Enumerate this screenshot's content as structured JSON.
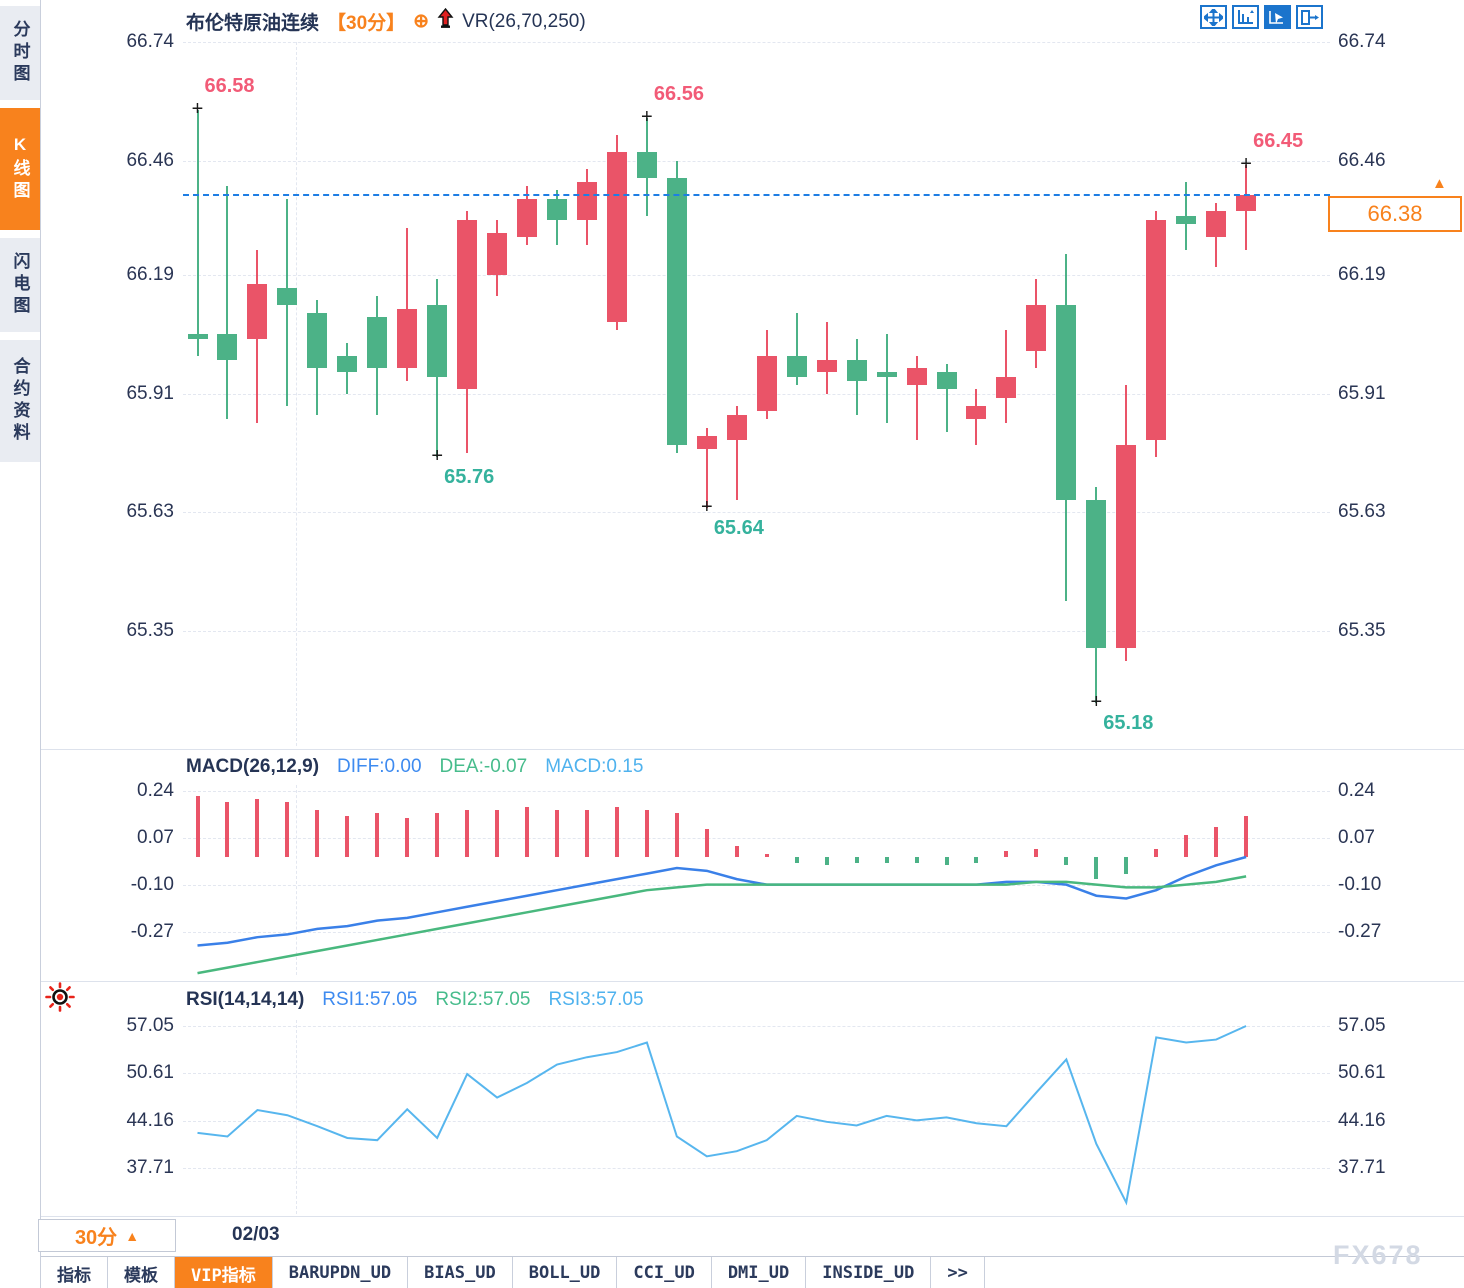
{
  "window": {
    "watermark": "FX678"
  },
  "sidebar": {
    "items": [
      {
        "label": "分时图",
        "active": false
      },
      {
        "label": "K线图",
        "active": true
      },
      {
        "label": "闪电图",
        "active": false
      },
      {
        "label": "合约资料",
        "active": false
      }
    ]
  },
  "header": {
    "symbol": "布伦特原油连续",
    "period": "【30分】",
    "plus_icon": "⊕",
    "indicator": "VR(26,70,250)",
    "toolbar_icons": [
      "pan-icon",
      "axis-scale-icon",
      "pointer-icon",
      "collapse-right-icon"
    ]
  },
  "price_tag": {
    "value": "66.38",
    "arrow": "▲"
  },
  "footer": {
    "period_button": "30分",
    "period_arrow": "▲",
    "date_label": "02/03",
    "tabs": [
      {
        "label": "指标",
        "active": false
      },
      {
        "label": "模板",
        "active": false
      },
      {
        "label": "VIP指标",
        "active": true
      },
      {
        "label": "BARUPDN_UD",
        "active": false
      },
      {
        "label": "BIAS_UD",
        "active": false
      },
      {
        "label": "BOLL_UD",
        "active": false
      },
      {
        "label": "CCI_UD",
        "active": false
      },
      {
        "label": "DMI_UD",
        "active": false
      },
      {
        "label": "INSIDE_UD",
        "active": false
      },
      {
        "label": ">>",
        "active": false
      }
    ]
  },
  "chart_data": {
    "type": "candlestick",
    "symbol": "布伦特原油连续",
    "interval": "30分",
    "current_price": 66.38,
    "main": {
      "axis": [
        "66.74",
        "66.46",
        "66.19",
        "65.91",
        "65.63",
        "65.35"
      ],
      "candles": [
        [
          66.05,
          66.58,
          66.0,
          66.04
        ],
        [
          66.05,
          66.4,
          65.85,
          65.99
        ],
        [
          66.04,
          66.25,
          65.84,
          66.17
        ],
        [
          66.16,
          66.37,
          65.88,
          66.12
        ],
        [
          66.1,
          66.13,
          65.86,
          65.97
        ],
        [
          66.0,
          66.03,
          65.91,
          65.96
        ],
        [
          66.09,
          66.14,
          65.86,
          65.97
        ],
        [
          65.97,
          66.3,
          65.94,
          66.11
        ],
        [
          66.12,
          66.18,
          65.76,
          65.95
        ],
        [
          65.92,
          66.34,
          65.77,
          66.32
        ],
        [
          66.19,
          66.32,
          66.14,
          66.29
        ],
        [
          66.28,
          66.4,
          66.26,
          66.37
        ],
        [
          66.37,
          66.39,
          66.26,
          66.32
        ],
        [
          66.32,
          66.44,
          66.26,
          66.41
        ],
        [
          66.08,
          66.52,
          66.06,
          66.48
        ],
        [
          66.48,
          66.56,
          66.33,
          66.42
        ],
        [
          66.42,
          66.46,
          65.77,
          65.79
        ],
        [
          65.78,
          65.83,
          65.64,
          65.81
        ],
        [
          65.8,
          65.88,
          65.66,
          65.86
        ],
        [
          65.87,
          66.06,
          65.85,
          66.0
        ],
        [
          66.0,
          66.1,
          65.93,
          65.95
        ],
        [
          65.96,
          66.08,
          65.91,
          65.99
        ],
        [
          65.99,
          66.04,
          65.86,
          65.94
        ],
        [
          65.96,
          66.05,
          65.84,
          65.95
        ],
        [
          65.93,
          66.0,
          65.8,
          65.97
        ],
        [
          65.96,
          65.98,
          65.82,
          65.92
        ],
        [
          65.85,
          65.92,
          65.79,
          65.88
        ],
        [
          65.9,
          66.06,
          65.84,
          65.95
        ],
        [
          66.01,
          66.18,
          65.97,
          66.12
        ],
        [
          66.12,
          66.24,
          65.42,
          65.66
        ],
        [
          65.66,
          65.69,
          65.18,
          65.31
        ],
        [
          65.31,
          65.93,
          65.28,
          65.79
        ],
        [
          65.8,
          66.34,
          65.76,
          66.32
        ],
        [
          66.33,
          66.41,
          66.25,
          66.31
        ],
        [
          66.28,
          66.36,
          66.21,
          66.34
        ],
        [
          66.34,
          66.45,
          66.25,
          66.38
        ]
      ],
      "markers": [
        {
          "index": 0,
          "type": "high",
          "label": "66.58"
        },
        {
          "index": 8,
          "type": "low",
          "label": "65.76"
        },
        {
          "index": 15,
          "type": "high",
          "label": "66.56"
        },
        {
          "index": 17,
          "type": "low",
          "label": "65.64"
        },
        {
          "index": 30,
          "type": "low",
          "label": "65.18"
        },
        {
          "index": 35,
          "type": "high",
          "label": "66.45"
        }
      ]
    },
    "macd": {
      "title": "MACD(26,12,9)",
      "diff_label": "DIFF:0.00",
      "dea_label": "DEA:-0.07",
      "macd_label": "MACD:0.15",
      "axis": [
        "0.24",
        "0.07",
        "-0.10",
        "-0.27"
      ],
      "hist": [
        0.22,
        0.2,
        0.21,
        0.2,
        0.17,
        0.15,
        0.16,
        0.14,
        0.16,
        0.17,
        0.17,
        0.18,
        0.17,
        0.17,
        0.18,
        0.17,
        0.16,
        0.1,
        0.04,
        0.01,
        -0.02,
        -0.03,
        -0.02,
        -0.02,
        -0.02,
        -0.03,
        -0.02,
        0.02,
        0.03,
        -0.03,
        -0.08,
        -0.06,
        0.03,
        0.08,
        0.11,
        0.15
      ],
      "diff": [
        -0.32,
        -0.31,
        -0.29,
        -0.28,
        -0.26,
        -0.25,
        -0.23,
        -0.22,
        -0.2,
        -0.18,
        -0.16,
        -0.14,
        -0.12,
        -0.1,
        -0.08,
        -0.06,
        -0.04,
        -0.05,
        -0.08,
        -0.1,
        -0.1,
        -0.1,
        -0.1,
        -0.1,
        -0.1,
        -0.1,
        -0.1,
        -0.09,
        -0.09,
        -0.1,
        -0.14,
        -0.15,
        -0.12,
        -0.07,
        -0.03,
        0.0
      ],
      "dea": [
        -0.42,
        -0.4,
        -0.38,
        -0.36,
        -0.34,
        -0.32,
        -0.3,
        -0.28,
        -0.26,
        -0.24,
        -0.22,
        -0.2,
        -0.18,
        -0.16,
        -0.14,
        -0.12,
        -0.11,
        -0.1,
        -0.1,
        -0.1,
        -0.1,
        -0.1,
        -0.1,
        -0.1,
        -0.1,
        -0.1,
        -0.1,
        -0.1,
        -0.09,
        -0.09,
        -0.1,
        -0.11,
        -0.11,
        -0.1,
        -0.09,
        -0.07
      ]
    },
    "rsi": {
      "title": "RSI(14,14,14)",
      "rsi1_label": "RSI1:57.05",
      "rsi2_label": "RSI2:57.05",
      "rsi3_label": "RSI3:57.05",
      "axis": [
        "57.05",
        "50.61",
        "44.16",
        "37.71"
      ],
      "values": [
        42.5,
        42.0,
        45.6,
        44.9,
        43.4,
        41.8,
        41.5,
        45.7,
        41.8,
        50.5,
        47.3,
        49.3,
        51.8,
        52.8,
        53.5,
        54.8,
        42.0,
        39.3,
        40.0,
        41.5,
        44.8,
        44.0,
        43.5,
        44.8,
        44.2,
        44.6,
        43.8,
        43.4,
        48.0,
        52.5,
        41.0,
        33.0,
        55.5,
        54.8,
        55.2,
        57.05
      ]
    },
    "colors": {
      "rise": "#EA5468",
      "fall": "#4CB287",
      "current_line": "#1E7EE4",
      "high_label": "#F25B77",
      "low_label": "#35B29D",
      "diff_line": "#3A80E8",
      "dea_line": "#49B87E",
      "rsi_line": "#57B6EE",
      "accent": "#F8821D"
    }
  }
}
